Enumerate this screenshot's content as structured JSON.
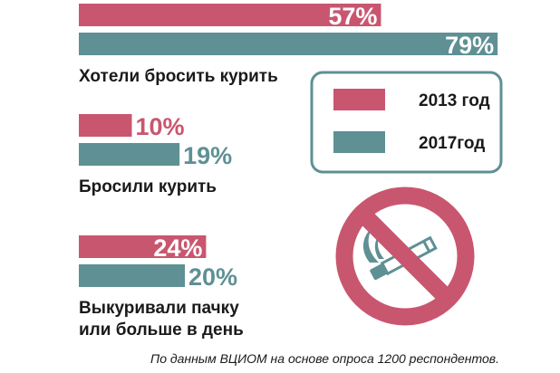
{
  "colors": {
    "y2013": "#c9566f",
    "y2017": "#5e9094",
    "text": "#1a1a1a",
    "legend_border": "#5e9094"
  },
  "chart_data": {
    "type": "bar",
    "orientation": "horizontal",
    "xlim": [
      0,
      100
    ],
    "categories": [
      "Хотели бросить курить",
      "Бросили курить",
      "Выкуривали пачку или больше в день"
    ],
    "series": [
      {
        "name": "2013 год",
        "values": [
          57,
          10,
          24
        ]
      },
      {
        "name": "2017год",
        "values": [
          79,
          19,
          20
        ]
      }
    ],
    "value_labels": [
      [
        "57%",
        "10%",
        "24%"
      ],
      [
        "79%",
        "19%",
        "20%"
      ]
    ],
    "category_label_lines": [
      [
        "Хотели бросить курить"
      ],
      [
        "Бросили курить"
      ],
      [
        "Выкуривали пачку",
        "или больше в день"
      ]
    ],
    "legend": {
      "placement": "right",
      "entries": [
        "2013 год",
        "2017год"
      ]
    },
    "grid": false,
    "icon": "no-smoking-icon"
  },
  "source_note": "По данным ВЦИОМ на основе опроса 1200 респондентов."
}
